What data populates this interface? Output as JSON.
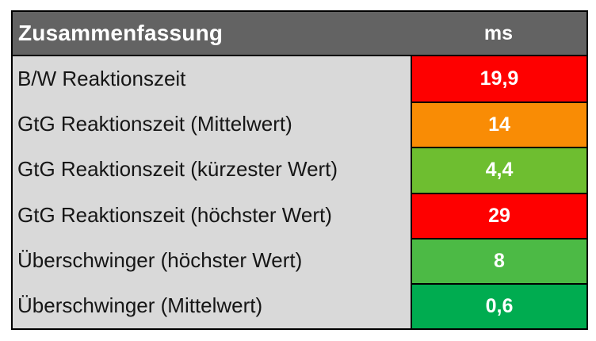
{
  "page": {
    "background": "#ffffff"
  },
  "table": {
    "header_bg": "#636363",
    "header_text_color": "#ffffff",
    "label_bg": "#d9d9d9",
    "border_color": "#000000",
    "value_text_color": "#ffffff"
  },
  "chart_data": {
    "type": "table",
    "title": "Zusammenfassung",
    "unit": "ms",
    "columns": [
      "Zusammenfassung",
      "ms"
    ],
    "rows": [
      {
        "label": "B/W Reaktionszeit",
        "value": 19.9,
        "value_text": "19,9",
        "value_bg": "#fe0000"
      },
      {
        "label": "GtG Reaktionszeit (Mittelwert)",
        "value": 14,
        "value_text": "14",
        "value_bg": "#f98c05"
      },
      {
        "label": "GtG Reaktionszeit (kürzester Wert)",
        "value": 4.4,
        "value_text": "4,4",
        "value_bg": "#6ebe30"
      },
      {
        "label": "GtG Reaktionszeit (höchster Wert)",
        "value": 29,
        "value_text": "29",
        "value_bg": "#fe0000"
      },
      {
        "label": "Überschwinger (höchster Wert)",
        "value": 8,
        "value_text": "8",
        "value_bg": "#4cba45"
      },
      {
        "label": "Überschwinger (Mittelwert)",
        "value": 0.6,
        "value_text": "0,6",
        "value_bg": "#00ac50"
      }
    ]
  }
}
